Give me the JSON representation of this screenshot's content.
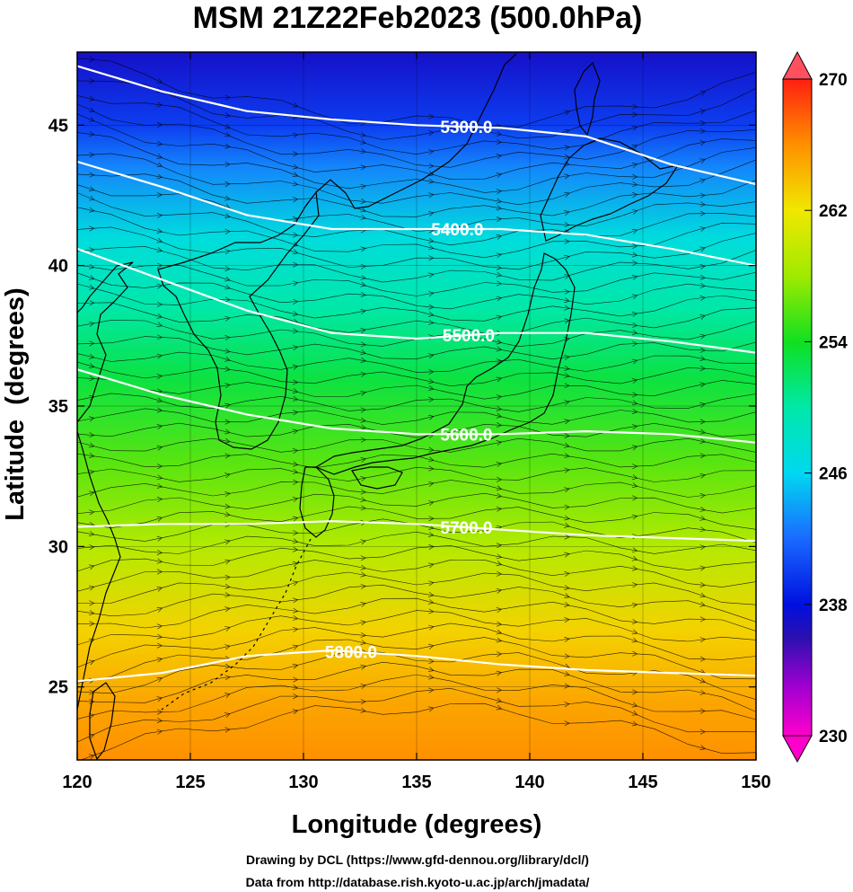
{
  "title": "MSM 21Z22Feb2023 (500.0hPa)",
  "xlabel": "Longitude (degrees)",
  "ylabel": "Latitude  (degrees)",
  "credits": [
    "Drawing by DCL (https://www.gfd-dennou.org/library/dcl/)",
    "Data from http://database.rish.kyoto-u.ac.jp/arch/jmadata/"
  ],
  "map": {
    "lon_range": [
      120,
      150
    ],
    "lat_range": [
      22.4,
      47.6
    ],
    "x_ticks": [
      {
        "value": 120,
        "label": "120"
      },
      {
        "value": 125,
        "label": "125"
      },
      {
        "value": 130,
        "label": "130"
      },
      {
        "value": 135,
        "label": "135"
      },
      {
        "value": 140,
        "label": "140"
      },
      {
        "value": 145,
        "label": "145"
      },
      {
        "value": 150,
        "label": "150"
      }
    ],
    "y_ticks": [
      {
        "value": 25,
        "label": "25"
      },
      {
        "value": 30,
        "label": "30"
      },
      {
        "value": 35,
        "label": "35"
      },
      {
        "value": 40,
        "label": "40"
      },
      {
        "value": 45,
        "label": "45"
      }
    ],
    "contours": [
      {
        "label": "5300.0",
        "label_lon": 137.2,
        "lats": [
          47.1,
          46.2,
          45.5,
          45.2,
          45.0,
          44.9,
          44.6,
          43.6,
          42.9
        ]
      },
      {
        "label": "5400.0",
        "label_lon": 136.8,
        "lats": [
          43.7,
          42.8,
          41.8,
          41.3,
          41.3,
          41.3,
          41.1,
          40.6,
          40.0
        ]
      },
      {
        "label": "5500.0",
        "label_lon": 137.3,
        "lats": [
          40.6,
          39.5,
          38.4,
          37.6,
          37.4,
          37.6,
          37.6,
          37.3,
          36.9
        ]
      },
      {
        "label": "5600.0",
        "label_lon": 137.2,
        "lats": [
          36.3,
          35.4,
          34.7,
          34.2,
          34.0,
          34.0,
          34.1,
          34.0,
          33.7
        ]
      },
      {
        "label": "5700.0",
        "label_lon": 137.2,
        "lats": [
          30.7,
          30.8,
          30.8,
          30.9,
          30.8,
          30.6,
          30.4,
          30.3,
          30.2
        ]
      },
      {
        "label": "5800.0",
        "label_lon": 132.1,
        "lats": [
          25.2,
          25.5,
          26.1,
          26.3,
          26.1,
          25.8,
          25.6,
          25.5,
          25.4
        ]
      }
    ],
    "temperature_field": {
      "lat_stops": [
        47.6,
        45,
        43.5,
        41,
        38.5,
        36,
        33,
        30,
        27,
        24.5,
        22.4
      ],
      "values_K": [
        237,
        240,
        243,
        247,
        250,
        253,
        256,
        259,
        263,
        265,
        266
      ]
    },
    "wind": {
      "direction": "westerly",
      "curve_toward_east": "south-east north of 38N, north-east south of 32N"
    }
  },
  "colorbar": {
    "min": 230,
    "max": 270,
    "ticks": [
      {
        "value": 230,
        "label": "230"
      },
      {
        "value": 238,
        "label": "238"
      },
      {
        "value": 246,
        "label": "246"
      },
      {
        "value": 254,
        "label": "254"
      },
      {
        "value": 262,
        "label": "262"
      },
      {
        "value": 270,
        "label": "270"
      }
    ],
    "colors": [
      {
        "value": 230,
        "color": "#ff00cc"
      },
      {
        "value": 233,
        "color": "#a000d0"
      },
      {
        "value": 236,
        "color": "#2a10b0"
      },
      {
        "value": 238,
        "color": "#0010e0"
      },
      {
        "value": 242,
        "color": "#1a6aff"
      },
      {
        "value": 246,
        "color": "#00d8f0"
      },
      {
        "value": 250,
        "color": "#00e8a8"
      },
      {
        "value": 254,
        "color": "#10e020"
      },
      {
        "value": 258,
        "color": "#a0ea00"
      },
      {
        "value": 262,
        "color": "#f0e800"
      },
      {
        "value": 266,
        "color": "#ff9000"
      },
      {
        "value": 270,
        "color": "#ff2010"
      }
    ]
  }
}
